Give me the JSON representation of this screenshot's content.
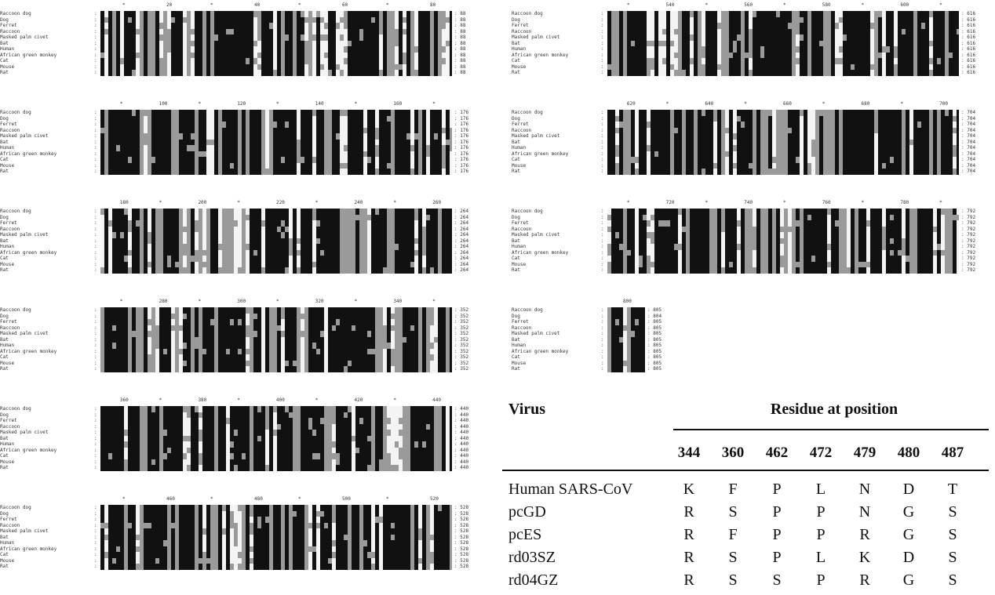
{
  "species": [
    "Raccoon dog",
    "Dog",
    "Ferret",
    "Raccoon",
    "Masked palm civet",
    "Bat",
    "Human",
    "African green monkey",
    "Cat",
    "Mouse",
    "Rat"
  ],
  "blocks": [
    {
      "id": "b1",
      "ruler": [
        "*",
        "20",
        "*",
        "40",
        "*",
        "60",
        "*",
        "80"
      ],
      "counts": [
        "88",
        "88",
        "88",
        "88",
        "88",
        "88",
        "88",
        "88",
        "88",
        "88",
        "88"
      ]
    },
    {
      "id": "b2",
      "ruler": [
        "*",
        "100",
        "*",
        "120",
        "*",
        "140",
        "*",
        "160",
        "*"
      ],
      "counts": [
        "176",
        "176",
        "176",
        "176",
        "176",
        "176",
        "176",
        "176",
        "176",
        "176",
        "176"
      ]
    },
    {
      "id": "b3",
      "ruler": [
        "180",
        "*",
        "200",
        "*",
        "220",
        "*",
        "240",
        "*",
        "260"
      ],
      "counts": [
        "264",
        "264",
        "264",
        "264",
        "264",
        "264",
        "264",
        "264",
        "264",
        "264",
        "264"
      ]
    },
    {
      "id": "b4",
      "ruler": [
        "*",
        "280",
        "*",
        "300",
        "*",
        "320",
        "*",
        "340",
        "*"
      ],
      "counts": [
        "352",
        "352",
        "352",
        "352",
        "352",
        "352",
        "352",
        "352",
        "352",
        "352",
        "352"
      ]
    },
    {
      "id": "b5",
      "ruler": [
        "360",
        "*",
        "380",
        "*",
        "400",
        "*",
        "420",
        "*",
        "440"
      ],
      "counts": [
        "440",
        "440",
        "440",
        "440",
        "440",
        "440",
        "440",
        "440",
        "440",
        "440",
        "440"
      ]
    },
    {
      "id": "b6",
      "ruler": [
        "*",
        "460",
        "*",
        "480",
        "*",
        "500",
        "*",
        "520"
      ],
      "counts": [
        "528",
        "528",
        "528",
        "528",
        "528",
        "528",
        "528",
        "528",
        "528",
        "528",
        "528"
      ]
    },
    {
      "id": "b7",
      "ruler": [
        "*",
        "540",
        "*",
        "560",
        "*",
        "580",
        "*",
        "600",
        "*"
      ],
      "counts": [
        "616",
        "616",
        "616",
        "616",
        "616",
        "616",
        "616",
        "616",
        "616",
        "616",
        "616"
      ]
    },
    {
      "id": "b8",
      "ruler": [
        "620",
        "*",
        "640",
        "*",
        "660",
        "*",
        "680",
        "*",
        "700"
      ],
      "counts": [
        "704",
        "704",
        "704",
        "704",
        "704",
        "704",
        "704",
        "704",
        "704",
        "704",
        "704"
      ]
    },
    {
      "id": "b9",
      "ruler": [
        "*",
        "720",
        "*",
        "740",
        "*",
        "760",
        "*",
        "780",
        "*"
      ],
      "counts": [
        "792",
        "792",
        "792",
        "792",
        "792",
        "792",
        "792",
        "792",
        "792",
        "792",
        "792"
      ]
    },
    {
      "id": "b10",
      "ruler": [
        "800"
      ],
      "counts": [
        "805",
        "804",
        "805",
        "805",
        "805",
        "805",
        "805",
        "805",
        "805",
        "805",
        "805"
      ]
    }
  ],
  "table": {
    "virus_header": "Virus",
    "residue_header": "Residue at position",
    "positions": [
      "344",
      "360",
      "462",
      "472",
      "479",
      "480",
      "487"
    ],
    "rows": [
      {
        "name": "Human SARS-CoV",
        "residues": [
          "K",
          "F",
          "P",
          "L",
          "N",
          "D",
          "T"
        ]
      },
      {
        "name": "pcGD",
        "residues": [
          "R",
          "S",
          "P",
          "P",
          "N",
          "G",
          "S"
        ]
      },
      {
        "name": "pcES",
        "residues": [
          "R",
          "F",
          "P",
          "P",
          "R",
          "G",
          "S"
        ]
      },
      {
        "name": "rd03SZ",
        "residues": [
          "R",
          "S",
          "P",
          "L",
          "K",
          "D",
          "S"
        ]
      },
      {
        "name": "rd04GZ",
        "residues": [
          "R",
          "S",
          "S",
          "P",
          "R",
          "G",
          "S"
        ]
      }
    ]
  }
}
